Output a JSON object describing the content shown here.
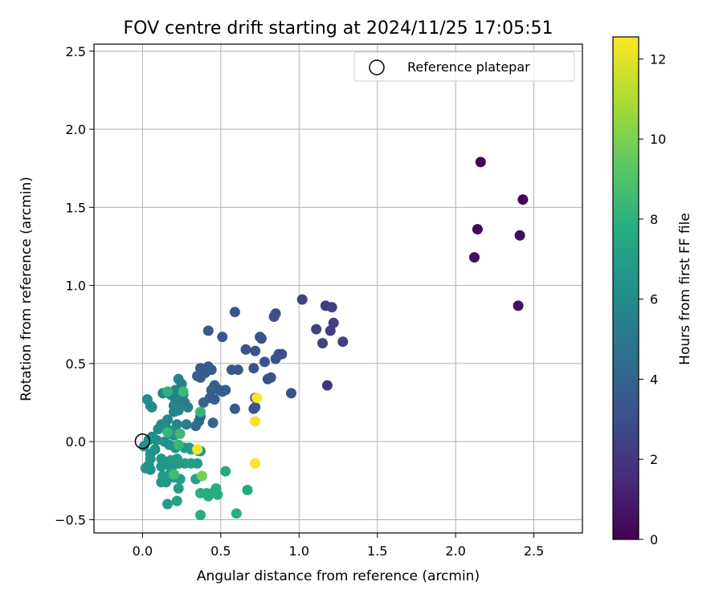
{
  "chart_data": {
    "type": "scatter",
    "title": "FOV centre drift starting at 2024/11/25 17:05:51",
    "xlabel": "Angular distance from reference (arcmin)",
    "ylabel": "Rotation from reference (arcmin)",
    "xlim": [
      -0.31,
      2.81
    ],
    "ylim": [
      -0.585,
      2.545
    ],
    "xticks": [
      "0.0",
      "0.5",
      "1.0",
      "1.5",
      "2.0",
      "2.5"
    ],
    "yticks": [
      "−0.5",
      "0.0",
      "0.5",
      "1.0",
      "1.5",
      "2.0",
      "2.5"
    ],
    "grid": true,
    "legend": {
      "placement": "top-right",
      "entries": [
        "Reference platepar"
      ]
    },
    "reference_point": {
      "x": 0.0,
      "y": 0.0
    },
    "colorbar": {
      "label": "Hours from first FF file",
      "range": [
        0,
        12.55
      ],
      "ticks": [
        "0",
        "2",
        "4",
        "6",
        "8",
        "10",
        "12"
      ],
      "colormap": "viridis"
    },
    "points": [
      {
        "x": 2.16,
        "y": 1.79,
        "c": 0.1
      },
      {
        "x": 2.43,
        "y": 1.55,
        "c": 0.2
      },
      {
        "x": 2.14,
        "y": 1.36,
        "c": 0.3
      },
      {
        "x": 2.41,
        "y": 1.32,
        "c": 0.4
      },
      {
        "x": 2.12,
        "y": 1.18,
        "c": 0.5
      },
      {
        "x": 2.4,
        "y": 0.87,
        "c": 0.6
      },
      {
        "x": 1.17,
        "y": 0.87,
        "c": 2.2
      },
      {
        "x": 1.21,
        "y": 0.86,
        "c": 2.3
      },
      {
        "x": 1.02,
        "y": 0.91,
        "c": 2.5
      },
      {
        "x": 1.11,
        "y": 0.72,
        "c": 2.4
      },
      {
        "x": 1.2,
        "y": 0.71,
        "c": 2.3
      },
      {
        "x": 1.22,
        "y": 0.76,
        "c": 2.2
      },
      {
        "x": 1.28,
        "y": 0.64,
        "c": 2.3
      },
      {
        "x": 1.15,
        "y": 0.63,
        "c": 2.5
      },
      {
        "x": 1.18,
        "y": 0.36,
        "c": 2.0
      },
      {
        "x": 0.85,
        "y": 0.82,
        "c": 3.0
      },
      {
        "x": 0.84,
        "y": 0.8,
        "c": 3.1
      },
      {
        "x": 0.59,
        "y": 0.83,
        "c": 3.3
      },
      {
        "x": 0.42,
        "y": 0.71,
        "c": 3.5
      },
      {
        "x": 0.51,
        "y": 0.67,
        "c": 3.4
      },
      {
        "x": 0.75,
        "y": 0.67,
        "c": 3.2
      },
      {
        "x": 0.76,
        "y": 0.66,
        "c": 3.1
      },
      {
        "x": 0.66,
        "y": 0.59,
        "c": 3.3
      },
      {
        "x": 0.72,
        "y": 0.58,
        "c": 3.2
      },
      {
        "x": 0.87,
        "y": 0.56,
        "c": 3.0
      },
      {
        "x": 0.89,
        "y": 0.56,
        "c": 3.0
      },
      {
        "x": 0.85,
        "y": 0.53,
        "c": 3.1
      },
      {
        "x": 0.78,
        "y": 0.51,
        "c": 3.2
      },
      {
        "x": 0.57,
        "y": 0.46,
        "c": 3.4
      },
      {
        "x": 0.61,
        "y": 0.46,
        "c": 3.3
      },
      {
        "x": 0.71,
        "y": 0.47,
        "c": 3.2
      },
      {
        "x": 0.37,
        "y": 0.47,
        "c": 3.6
      },
      {
        "x": 0.42,
        "y": 0.48,
        "c": 3.5
      },
      {
        "x": 0.44,
        "y": 0.46,
        "c": 3.6
      },
      {
        "x": 0.4,
        "y": 0.44,
        "c": 3.7
      },
      {
        "x": 0.35,
        "y": 0.42,
        "c": 3.8
      },
      {
        "x": 0.37,
        "y": 0.41,
        "c": 3.7
      },
      {
        "x": 0.82,
        "y": 0.41,
        "c": 3.1
      },
      {
        "x": 0.8,
        "y": 0.4,
        "c": 3.1
      },
      {
        "x": 0.46,
        "y": 0.36,
        "c": 3.7
      },
      {
        "x": 0.44,
        "y": 0.33,
        "c": 3.8
      },
      {
        "x": 0.49,
        "y": 0.33,
        "c": 3.6
      },
      {
        "x": 0.53,
        "y": 0.33,
        "c": 3.5
      },
      {
        "x": 0.51,
        "y": 0.32,
        "c": 3.6
      },
      {
        "x": 0.95,
        "y": 0.31,
        "c": 3.0
      },
      {
        "x": 0.72,
        "y": 0.28,
        "c": 3.4
      },
      {
        "x": 0.71,
        "y": 0.21,
        "c": 3.4
      },
      {
        "x": 0.72,
        "y": 0.22,
        "c": 3.3
      },
      {
        "x": 0.59,
        "y": 0.21,
        "c": 3.5
      },
      {
        "x": 0.39,
        "y": 0.25,
        "c": 4.0
      },
      {
        "x": 0.43,
        "y": 0.28,
        "c": 3.8
      },
      {
        "x": 0.46,
        "y": 0.27,
        "c": 3.7
      },
      {
        "x": 0.45,
        "y": 0.12,
        "c": 4.0
      },
      {
        "x": 0.37,
        "y": 0.16,
        "c": 4.2
      },
      {
        "x": 0.36,
        "y": 0.13,
        "c": 4.3
      },
      {
        "x": 0.34,
        "y": 0.1,
        "c": 4.4
      },
      {
        "x": 0.23,
        "y": 0.4,
        "c": 5.5
      },
      {
        "x": 0.25,
        "y": 0.37,
        "c": 5.4
      },
      {
        "x": 0.21,
        "y": 0.33,
        "c": 5.5
      },
      {
        "x": 0.13,
        "y": 0.31,
        "c": 5.6
      },
      {
        "x": 0.26,
        "y": 0.3,
        "c": 5.3
      },
      {
        "x": 0.18,
        "y": 0.3,
        "c": 5.5
      },
      {
        "x": 0.21,
        "y": 0.27,
        "c": 5.4
      },
      {
        "x": 0.23,
        "y": 0.26,
        "c": 5.4
      },
      {
        "x": 0.27,
        "y": 0.25,
        "c": 5.3
      },
      {
        "x": 0.03,
        "y": 0.27,
        "c": 6.0
      },
      {
        "x": 0.05,
        "y": 0.23,
        "c": 6.0
      },
      {
        "x": 0.06,
        "y": 0.22,
        "c": 5.9
      },
      {
        "x": 0.2,
        "y": 0.23,
        "c": 5.5
      },
      {
        "x": 0.23,
        "y": 0.2,
        "c": 5.6
      },
      {
        "x": 0.29,
        "y": 0.22,
        "c": 5.3
      },
      {
        "x": 0.2,
        "y": 0.19,
        "c": 5.6
      },
      {
        "x": 0.16,
        "y": 0.14,
        "c": 5.7
      },
      {
        "x": 0.22,
        "y": 0.11,
        "c": 5.6
      },
      {
        "x": 0.28,
        "y": 0.11,
        "c": 5.4
      },
      {
        "x": 0.12,
        "y": 0.11,
        "c": 5.8
      },
      {
        "x": 0.1,
        "y": 0.08,
        "c": 5.9
      },
      {
        "x": 0.15,
        "y": 0.09,
        "c": 6.2
      },
      {
        "x": 0.19,
        "y": 0.07,
        "c": 6.4
      },
      {
        "x": 0.17,
        "y": 0.05,
        "c": 6.3
      },
      {
        "x": 0.2,
        "y": 0.04,
        "c": 6.4
      },
      {
        "x": 0.06,
        "y": 0.03,
        "c": 6.1
      },
      {
        "x": 0.04,
        "y": 0.01,
        "c": 6.2
      },
      {
        "x": 0.09,
        "y": 0.01,
        "c": 6.2
      },
      {
        "x": 0.14,
        "y": 0.0,
        "c": 6.3
      },
      {
        "x": 0.17,
        "y": -0.02,
        "c": 6.4
      },
      {
        "x": 0.2,
        "y": -0.03,
        "c": 6.5
      },
      {
        "x": 0.21,
        "y": -0.04,
        "c": 6.5
      },
      {
        "x": 0.08,
        "y": -0.05,
        "c": 6.3
      },
      {
        "x": 0.01,
        "y": -0.03,
        "c": 6.2
      },
      {
        "x": 0.05,
        "y": -0.08,
        "c": 6.3
      },
      {
        "x": 0.27,
        "y": -0.04,
        "c": 6.6
      },
      {
        "x": 0.3,
        "y": -0.04,
        "c": 6.6
      },
      {
        "x": 0.31,
        "y": -0.05,
        "c": 6.7
      },
      {
        "x": 0.36,
        "y": -0.06,
        "c": 6.6
      },
      {
        "x": 0.37,
        "y": -0.06,
        "c": 6.7
      },
      {
        "x": 0.05,
        "y": -0.11,
        "c": 6.4
      },
      {
        "x": 0.12,
        "y": -0.11,
        "c": 6.5
      },
      {
        "x": 0.15,
        "y": -0.13,
        "c": 6.6
      },
      {
        "x": 0.18,
        "y": -0.12,
        "c": 6.6
      },
      {
        "x": 0.22,
        "y": -0.11,
        "c": 6.7
      },
      {
        "x": 0.04,
        "y": -0.15,
        "c": 6.4
      },
      {
        "x": 0.02,
        "y": -0.17,
        "c": 6.4
      },
      {
        "x": 0.05,
        "y": -0.18,
        "c": 6.4
      },
      {
        "x": 0.12,
        "y": -0.16,
        "c": 6.6
      },
      {
        "x": 0.17,
        "y": -0.15,
        "c": 6.7
      },
      {
        "x": 0.19,
        "y": -0.16,
        "c": 6.7
      },
      {
        "x": 0.23,
        "y": -0.14,
        "c": 6.8
      },
      {
        "x": 0.27,
        "y": -0.14,
        "c": 6.8
      },
      {
        "x": 0.31,
        "y": -0.14,
        "c": 7.0
      },
      {
        "x": 0.35,
        "y": -0.14,
        "c": 7.0
      },
      {
        "x": 0.13,
        "y": -0.22,
        "c": 6.7
      },
      {
        "x": 0.18,
        "y": -0.2,
        "c": 6.8
      },
      {
        "x": 0.2,
        "y": -0.23,
        "c": 6.8
      },
      {
        "x": 0.24,
        "y": -0.24,
        "c": 6.9
      },
      {
        "x": 0.12,
        "y": -0.26,
        "c": 6.6
      },
      {
        "x": 0.15,
        "y": -0.26,
        "c": 6.7
      },
      {
        "x": 0.23,
        "y": -0.3,
        "c": 7.0
      },
      {
        "x": 0.34,
        "y": -0.24,
        "c": 7.1
      },
      {
        "x": 0.16,
        "y": -0.4,
        "c": 6.8
      },
      {
        "x": 0.22,
        "y": -0.38,
        "c": 7.2
      },
      {
        "x": 0.37,
        "y": 0.19,
        "c": 8.2
      },
      {
        "x": 0.16,
        "y": 0.32,
        "c": 8.0
      },
      {
        "x": 0.26,
        "y": 0.32,
        "c": 8.4
      },
      {
        "x": 0.16,
        "y": 0.06,
        "c": 8.2
      },
      {
        "x": 0.24,
        "y": 0.05,
        "c": 8.5
      },
      {
        "x": 0.23,
        "y": -0.02,
        "c": 8.3
      },
      {
        "x": 0.2,
        "y": -0.21,
        "c": 8.6
      },
      {
        "x": 0.37,
        "y": -0.33,
        "c": 7.8
      },
      {
        "x": 0.41,
        "y": -0.33,
        "c": 7.9
      },
      {
        "x": 0.42,
        "y": -0.35,
        "c": 7.8
      },
      {
        "x": 0.46,
        "y": -0.32,
        "c": 7.7
      },
      {
        "x": 0.48,
        "y": -0.34,
        "c": 7.8
      },
      {
        "x": 0.47,
        "y": -0.3,
        "c": 7.7
      },
      {
        "x": 0.53,
        "y": -0.19,
        "c": 7.6
      },
      {
        "x": 0.67,
        "y": -0.31,
        "c": 7.6
      },
      {
        "x": 0.37,
        "y": -0.47,
        "c": 7.9
      },
      {
        "x": 0.6,
        "y": -0.46,
        "c": 7.8
      },
      {
        "x": 0.38,
        "y": -0.22,
        "c": 9.8
      },
      {
        "x": 0.35,
        "y": -0.05,
        "c": 12.3
      },
      {
        "x": 0.73,
        "y": 0.28,
        "c": 12.4
      },
      {
        "x": 0.72,
        "y": 0.13,
        "c": 12.3
      },
      {
        "x": 0.72,
        "y": -0.14,
        "c": 12.4
      }
    ]
  }
}
